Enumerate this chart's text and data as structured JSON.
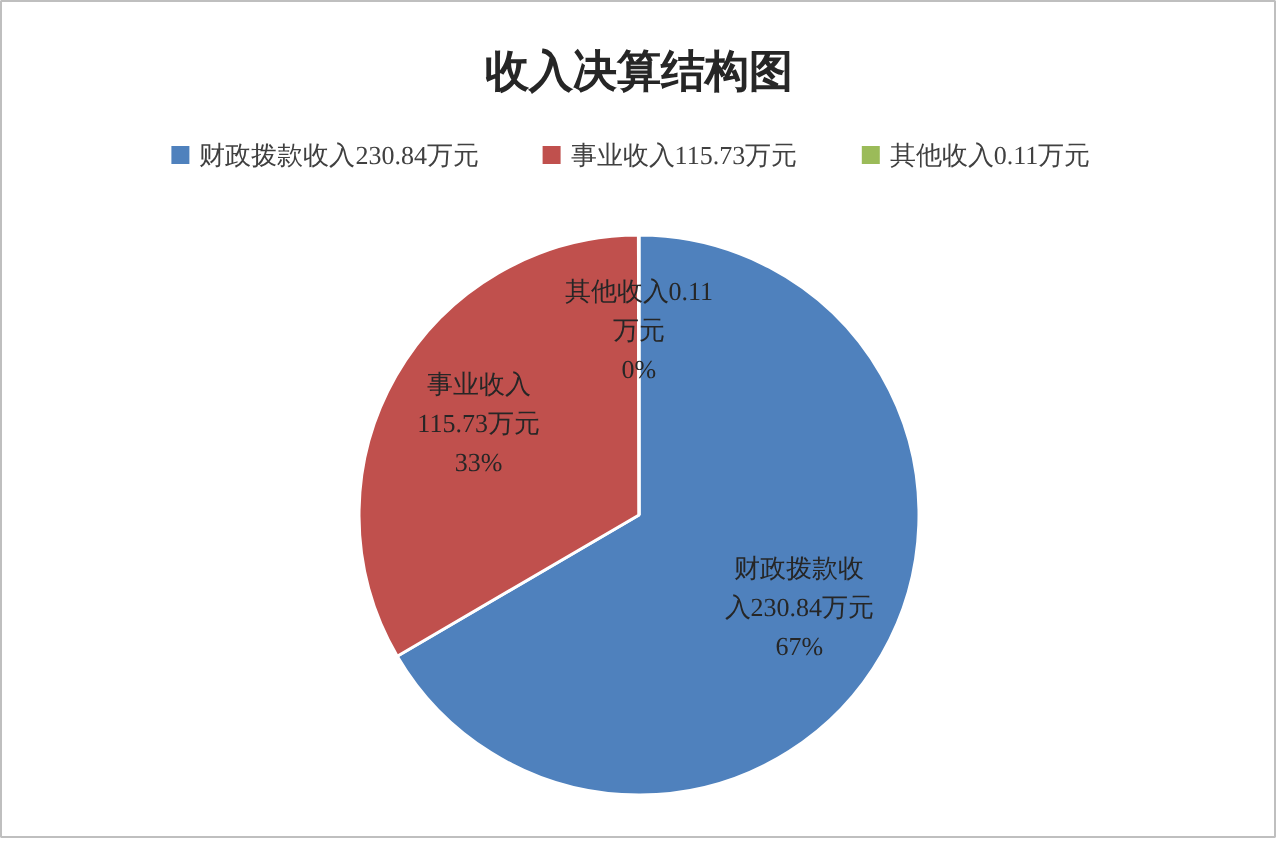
{
  "chart_data": {
    "type": "pie",
    "title": "收入决算结构图",
    "categories": [
      "财政拨款收入230.84万元",
      "事业收入115.73万元",
      "其他收入0.11万元"
    ],
    "values": [
      230.84,
      115.73,
      0.11
    ],
    "colors": [
      "#4f81bd",
      "#c0504d",
      "#9bbb59"
    ],
    "value_labels": [
      "财政拨款收入230.84万元\n67%",
      "事业收入115.73万元\n33%",
      "其他收入0.11万元\n0%"
    ],
    "legend": "top"
  }
}
